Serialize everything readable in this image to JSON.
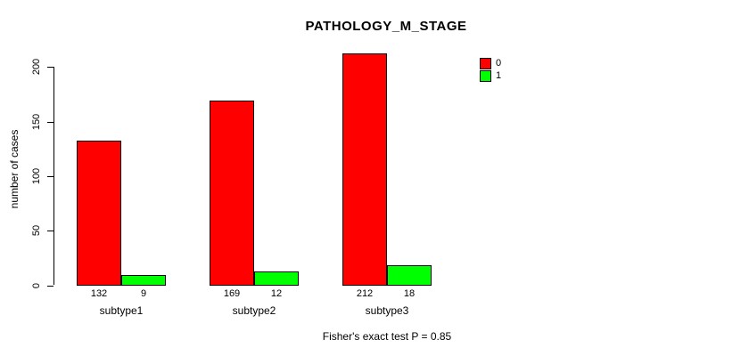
{
  "chart_data": {
    "type": "bar",
    "title": "PATHOLOGY_M_STAGE",
    "categories": [
      "subtype1",
      "subtype2",
      "subtype3"
    ],
    "series": [
      {
        "name": "0",
        "color": "#ff0000",
        "values": [
          132,
          169,
          212
        ]
      },
      {
        "name": "1",
        "color": "#00ff00",
        "values": [
          9,
          12,
          18
        ]
      }
    ],
    "xlabel": "",
    "ylabel": "number of cases",
    "yticks": [
      0,
      50,
      100,
      150,
      200
    ],
    "ylim": [
      0,
      200
    ],
    "grid": false,
    "legend_position": "top-right",
    "bar_borders": "#000000",
    "annotation": "Fisher's exact test P = 0.85"
  },
  "legend": {
    "items": [
      {
        "label": "0",
        "color": "#ff0000"
      },
      {
        "label": "1",
        "color": "#00ff00"
      }
    ]
  },
  "colors": {
    "background": "#ffffff",
    "axis": "#000000",
    "text": "#000000"
  }
}
